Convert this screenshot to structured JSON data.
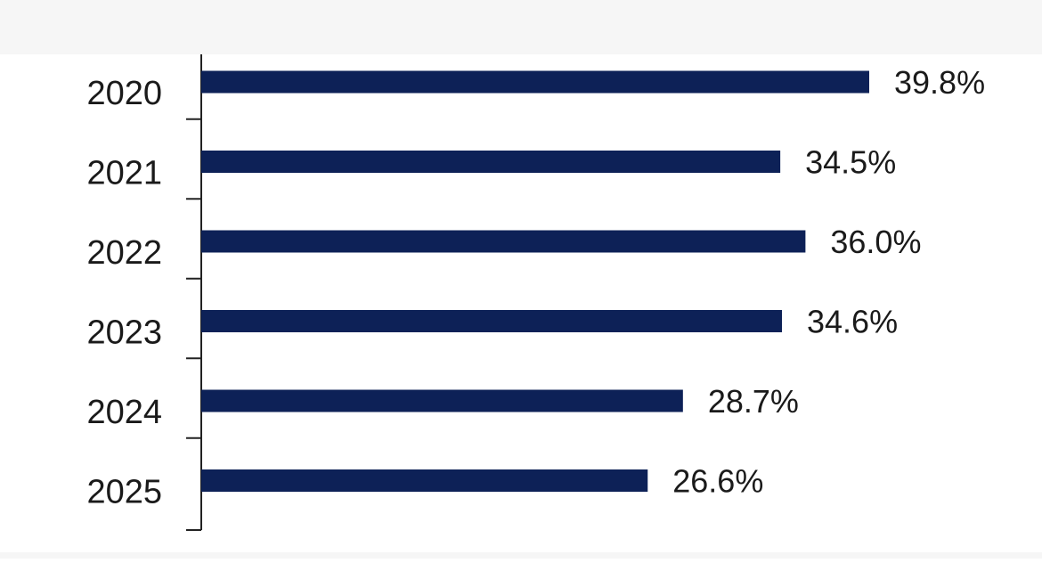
{
  "chart_data": {
    "type": "bar",
    "orientation": "horizontal",
    "categories": [
      "2020",
      "2021",
      "2022",
      "2023",
      "2024",
      "2025"
    ],
    "values": [
      39.8,
      34.5,
      36.0,
      34.6,
      28.7,
      26.6
    ],
    "value_labels": [
      "39.8%",
      "34.5%",
      "36.0%",
      "34.6%",
      "28.7%",
      "26.6%"
    ],
    "unit": "%",
    "xlim": [
      0,
      39.8
    ],
    "grid": false,
    "legend": "none",
    "bar_color": "#0d2157",
    "title": "",
    "xlabel": "",
    "ylabel": ""
  }
}
